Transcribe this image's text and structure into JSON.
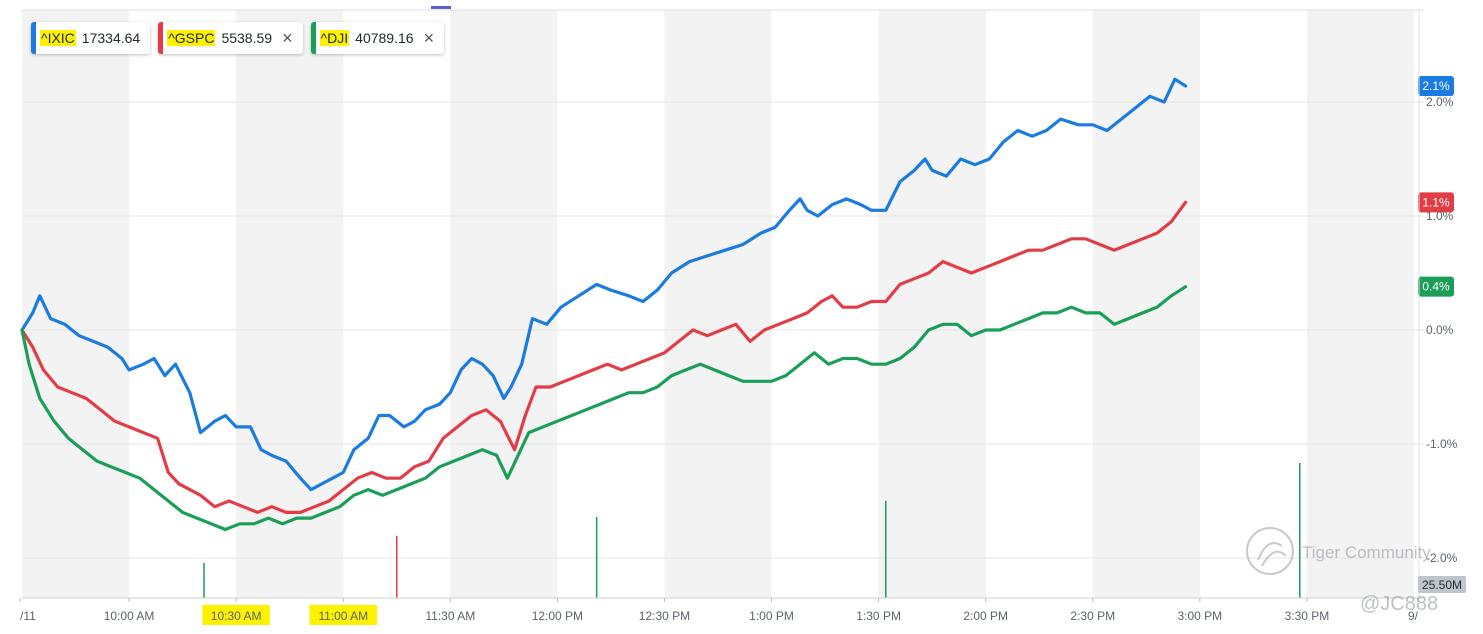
{
  "legend": [
    {
      "symbol": "^IXIC",
      "value": "17334.64",
      "color": "#1a7be0",
      "closable": false
    },
    {
      "symbol": "^GSPC",
      "value": "5538.59",
      "color": "#e23c47",
      "closable": true
    },
    {
      "symbol": "^DJI",
      "value": "40789.16",
      "color": "#1a9e58",
      "closable": true
    }
  ],
  "close_glyph": "×",
  "watermark": {
    "brand": "Tiger Community",
    "user": "@JC888"
  },
  "volume_label": "25.50M",
  "chart_data": {
    "type": "line",
    "x_ticks": [
      "/11",
      "10:00 AM",
      "10:30 AM",
      "11:00 AM",
      "11:30 AM",
      "12:00 PM",
      "12:30 PM",
      "1:00 PM",
      "1:30 PM",
      "2:00 PM",
      "2:30 PM",
      "3:00 PM",
      "3:30 PM",
      "9/"
    ],
    "highlighted_ticks": [
      "10:30 AM",
      "11:00 AM"
    ],
    "y_ticks": [
      "2.0%",
      "1.0%",
      "0.0%",
      "-1.0%",
      "-2.0%"
    ],
    "y_tick_values": [
      2.0,
      1.0,
      0.0,
      -1.0,
      -2.0
    ],
    "ylim": [
      -2.4,
      2.8
    ],
    "xlim_minutes": [
      570,
      960
    ],
    "grid": true,
    "series": [
      {
        "name": "^IXIC",
        "color": "#1a7be0",
        "end_label": "2.1%",
        "points": [
          [
            570,
            0.0
          ],
          [
            573,
            0.15
          ],
          [
            575,
            0.3
          ],
          [
            578,
            0.1
          ],
          [
            582,
            0.05
          ],
          [
            586,
            -0.05
          ],
          [
            590,
            -0.1
          ],
          [
            594,
            -0.15
          ],
          [
            598,
            -0.25
          ],
          [
            600,
            -0.35
          ],
          [
            604,
            -0.3
          ],
          [
            607,
            -0.25
          ],
          [
            610,
            -0.4
          ],
          [
            613,
            -0.3
          ],
          [
            617,
            -0.55
          ],
          [
            620,
            -0.9
          ],
          [
            624,
            -0.8
          ],
          [
            627,
            -0.75
          ],
          [
            630,
            -0.85
          ],
          [
            634,
            -0.85
          ],
          [
            637,
            -1.05
          ],
          [
            640,
            -1.1
          ],
          [
            644,
            -1.15
          ],
          [
            648,
            -1.3
          ],
          [
            651,
            -1.4
          ],
          [
            654,
            -1.35
          ],
          [
            657,
            -1.3
          ],
          [
            660,
            -1.25
          ],
          [
            663,
            -1.05
          ],
          [
            667,
            -0.95
          ],
          [
            670,
            -0.75
          ],
          [
            673,
            -0.75
          ],
          [
            677,
            -0.85
          ],
          [
            680,
            -0.8
          ],
          [
            683,
            -0.7
          ],
          [
            687,
            -0.65
          ],
          [
            690,
            -0.55
          ],
          [
            693,
            -0.35
          ],
          [
            696,
            -0.25
          ],
          [
            699,
            -0.3
          ],
          [
            702,
            -0.4
          ],
          [
            705,
            -0.6
          ],
          [
            707,
            -0.5
          ],
          [
            710,
            -0.3
          ],
          [
            713,
            0.1
          ],
          [
            717,
            0.05
          ],
          [
            721,
            0.2
          ],
          [
            726,
            0.3
          ],
          [
            731,
            0.4
          ],
          [
            735,
            0.35
          ],
          [
            740,
            0.3
          ],
          [
            744,
            0.25
          ],
          [
            748,
            0.35
          ],
          [
            752,
            0.5
          ],
          [
            757,
            0.6
          ],
          [
            762,
            0.65
          ],
          [
            767,
            0.7
          ],
          [
            772,
            0.75
          ],
          [
            777,
            0.85
          ],
          [
            781,
            0.9
          ],
          [
            785,
            1.05
          ],
          [
            788,
            1.15
          ],
          [
            790,
            1.05
          ],
          [
            793,
            1.0
          ],
          [
            797,
            1.1
          ],
          [
            801,
            1.15
          ],
          [
            805,
            1.1
          ],
          [
            808,
            1.05
          ],
          [
            812,
            1.05
          ],
          [
            816,
            1.3
          ],
          [
            820,
            1.4
          ],
          [
            823,
            1.5
          ],
          [
            825,
            1.4
          ],
          [
            829,
            1.35
          ],
          [
            833,
            1.5
          ],
          [
            837,
            1.45
          ],
          [
            841,
            1.5
          ],
          [
            845,
            1.65
          ],
          [
            849,
            1.75
          ],
          [
            853,
            1.7
          ],
          [
            857,
            1.75
          ],
          [
            861,
            1.85
          ],
          [
            866,
            1.8
          ],
          [
            870,
            1.8
          ],
          [
            874,
            1.75
          ],
          [
            878,
            1.85
          ],
          [
            882,
            1.95
          ],
          [
            886,
            2.05
          ],
          [
            890,
            2.0
          ],
          [
            893,
            2.2
          ],
          [
            896,
            2.14
          ]
        ]
      },
      {
        "name": "^GSPC",
        "color": "#e23c47",
        "end_label": "1.1%",
        "points": [
          [
            570,
            0.0
          ],
          [
            573,
            -0.15
          ],
          [
            576,
            -0.35
          ],
          [
            580,
            -0.5
          ],
          [
            584,
            -0.55
          ],
          [
            588,
            -0.6
          ],
          [
            592,
            -0.7
          ],
          [
            596,
            -0.8
          ],
          [
            600,
            -0.85
          ],
          [
            604,
            -0.9
          ],
          [
            608,
            -0.95
          ],
          [
            611,
            -1.25
          ],
          [
            614,
            -1.35
          ],
          [
            617,
            -1.4
          ],
          [
            620,
            -1.45
          ],
          [
            624,
            -1.55
          ],
          [
            628,
            -1.5
          ],
          [
            632,
            -1.55
          ],
          [
            636,
            -1.6
          ],
          [
            640,
            -1.55
          ],
          [
            644,
            -1.6
          ],
          [
            648,
            -1.6
          ],
          [
            652,
            -1.55
          ],
          [
            656,
            -1.5
          ],
          [
            660,
            -1.4
          ],
          [
            664,
            -1.3
          ],
          [
            668,
            -1.25
          ],
          [
            672,
            -1.3
          ],
          [
            676,
            -1.3
          ],
          [
            680,
            -1.2
          ],
          [
            684,
            -1.15
          ],
          [
            688,
            -0.95
          ],
          [
            692,
            -0.85
          ],
          [
            696,
            -0.75
          ],
          [
            700,
            -0.7
          ],
          [
            704,
            -0.8
          ],
          [
            708,
            -1.05
          ],
          [
            711,
            -0.75
          ],
          [
            714,
            -0.5
          ],
          [
            718,
            -0.5
          ],
          [
            722,
            -0.45
          ],
          [
            726,
            -0.4
          ],
          [
            730,
            -0.35
          ],
          [
            734,
            -0.3
          ],
          [
            738,
            -0.35
          ],
          [
            742,
            -0.3
          ],
          [
            746,
            -0.25
          ],
          [
            750,
            -0.2
          ],
          [
            754,
            -0.1
          ],
          [
            758,
            0.0
          ],
          [
            762,
            -0.05
          ],
          [
            766,
            0.0
          ],
          [
            770,
            0.05
          ],
          [
            774,
            -0.1
          ],
          [
            778,
            0.0
          ],
          [
            782,
            0.05
          ],
          [
            786,
            0.1
          ],
          [
            790,
            0.15
          ],
          [
            794,
            0.25
          ],
          [
            797,
            0.3
          ],
          [
            800,
            0.2
          ],
          [
            804,
            0.2
          ],
          [
            808,
            0.25
          ],
          [
            812,
            0.25
          ],
          [
            816,
            0.4
          ],
          [
            820,
            0.45
          ],
          [
            824,
            0.5
          ],
          [
            828,
            0.6
          ],
          [
            832,
            0.55
          ],
          [
            836,
            0.5
          ],
          [
            840,
            0.55
          ],
          [
            844,
            0.6
          ],
          [
            848,
            0.65
          ],
          [
            852,
            0.7
          ],
          [
            856,
            0.7
          ],
          [
            860,
            0.75
          ],
          [
            864,
            0.8
          ],
          [
            868,
            0.8
          ],
          [
            872,
            0.75
          ],
          [
            876,
            0.7
          ],
          [
            880,
            0.75
          ],
          [
            884,
            0.8
          ],
          [
            888,
            0.85
          ],
          [
            892,
            0.95
          ],
          [
            896,
            1.12
          ]
        ]
      },
      {
        "name": "^DJI",
        "color": "#1a9e58",
        "end_label": "0.4%",
        "points": [
          [
            570,
            0.0
          ],
          [
            572,
            -0.3
          ],
          [
            575,
            -0.6
          ],
          [
            579,
            -0.8
          ],
          [
            583,
            -0.95
          ],
          [
            587,
            -1.05
          ],
          [
            591,
            -1.15
          ],
          [
            595,
            -1.2
          ],
          [
            599,
            -1.25
          ],
          [
            603,
            -1.3
          ],
          [
            607,
            -1.4
          ],
          [
            611,
            -1.5
          ],
          [
            615,
            -1.6
          ],
          [
            619,
            -1.65
          ],
          [
            623,
            -1.7
          ],
          [
            627,
            -1.75
          ],
          [
            631,
            -1.7
          ],
          [
            635,
            -1.7
          ],
          [
            639,
            -1.65
          ],
          [
            643,
            -1.7
          ],
          [
            647,
            -1.65
          ],
          [
            651,
            -1.65
          ],
          [
            655,
            -1.6
          ],
          [
            659,
            -1.55
          ],
          [
            663,
            -1.45
          ],
          [
            667,
            -1.4
          ],
          [
            671,
            -1.45
          ],
          [
            675,
            -1.4
          ],
          [
            679,
            -1.35
          ],
          [
            683,
            -1.3
          ],
          [
            687,
            -1.2
          ],
          [
            691,
            -1.15
          ],
          [
            695,
            -1.1
          ],
          [
            699,
            -1.05
          ],
          [
            703,
            -1.1
          ],
          [
            706,
            -1.3
          ],
          [
            709,
            -1.1
          ],
          [
            712,
            -0.9
          ],
          [
            716,
            -0.85
          ],
          [
            720,
            -0.8
          ],
          [
            724,
            -0.75
          ],
          [
            728,
            -0.7
          ],
          [
            732,
            -0.65
          ],
          [
            736,
            -0.6
          ],
          [
            740,
            -0.55
          ],
          [
            744,
            -0.55
          ],
          [
            748,
            -0.5
          ],
          [
            752,
            -0.4
          ],
          [
            756,
            -0.35
          ],
          [
            760,
            -0.3
          ],
          [
            764,
            -0.35
          ],
          [
            768,
            -0.4
          ],
          [
            772,
            -0.45
          ],
          [
            776,
            -0.45
          ],
          [
            780,
            -0.45
          ],
          [
            784,
            -0.4
          ],
          [
            788,
            -0.3
          ],
          [
            792,
            -0.2
          ],
          [
            796,
            -0.3
          ],
          [
            800,
            -0.25
          ],
          [
            804,
            -0.25
          ],
          [
            808,
            -0.3
          ],
          [
            812,
            -0.3
          ],
          [
            816,
            -0.25
          ],
          [
            820,
            -0.15
          ],
          [
            824,
            0.0
          ],
          [
            828,
            0.05
          ],
          [
            832,
            0.05
          ],
          [
            836,
            -0.05
          ],
          [
            840,
            0.0
          ],
          [
            844,
            0.0
          ],
          [
            848,
            0.05
          ],
          [
            852,
            0.1
          ],
          [
            856,
            0.15
          ],
          [
            860,
            0.15
          ],
          [
            864,
            0.2
          ],
          [
            868,
            0.15
          ],
          [
            872,
            0.15
          ],
          [
            876,
            0.05
          ],
          [
            880,
            0.1
          ],
          [
            884,
            0.15
          ],
          [
            888,
            0.2
          ],
          [
            892,
            0.3
          ],
          [
            896,
            0.38
          ]
        ]
      }
    ],
    "volume_spikes": [
      {
        "minute": 621,
        "value": 0.13,
        "color": "#1a9e58"
      },
      {
        "minute": 675,
        "value": 0.23,
        "color": "#e23c47"
      },
      {
        "minute": 731,
        "value": 0.3,
        "color": "#1a9e58"
      },
      {
        "minute": 812,
        "value": 0.36,
        "color": "#1a9e58"
      },
      {
        "minute": 928,
        "value": 0.5,
        "color": "#1a9e58"
      }
    ]
  }
}
